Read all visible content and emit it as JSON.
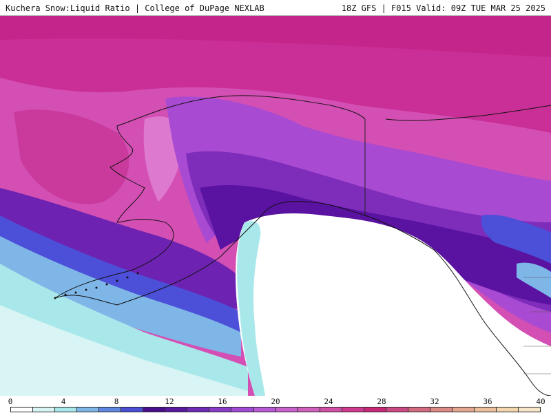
{
  "header": {
    "title": "Kuchera Snow:Liquid Ratio | College of DuPage NEXLAB",
    "run_info": "18Z GFS | F015 Valid: 09Z TUE MAR 25 2025"
  },
  "legend": {
    "ticks": [
      "0",
      "4",
      "8",
      "12",
      "16",
      "20",
      "24",
      "28",
      "32",
      "36",
      "40"
    ],
    "colors": [
      "#ffffff",
      "#d8f4f4",
      "#a9e8ea",
      "#7fb6e8",
      "#5f86e0",
      "#4a4fd6",
      "#4a0f8e",
      "#5a1aa0",
      "#6f2bb6",
      "#8a3cc8",
      "#a24ad6",
      "#b85ad8",
      "#c860cc",
      "#d060bc",
      "#d24fa6",
      "#cf3a8e",
      "#c92878",
      "#cc4a84",
      "#d26a80",
      "#dc8a86",
      "#e4a690",
      "#ecc09c",
      "#f4d6ae",
      "#f8e6c8"
    ]
  }
}
